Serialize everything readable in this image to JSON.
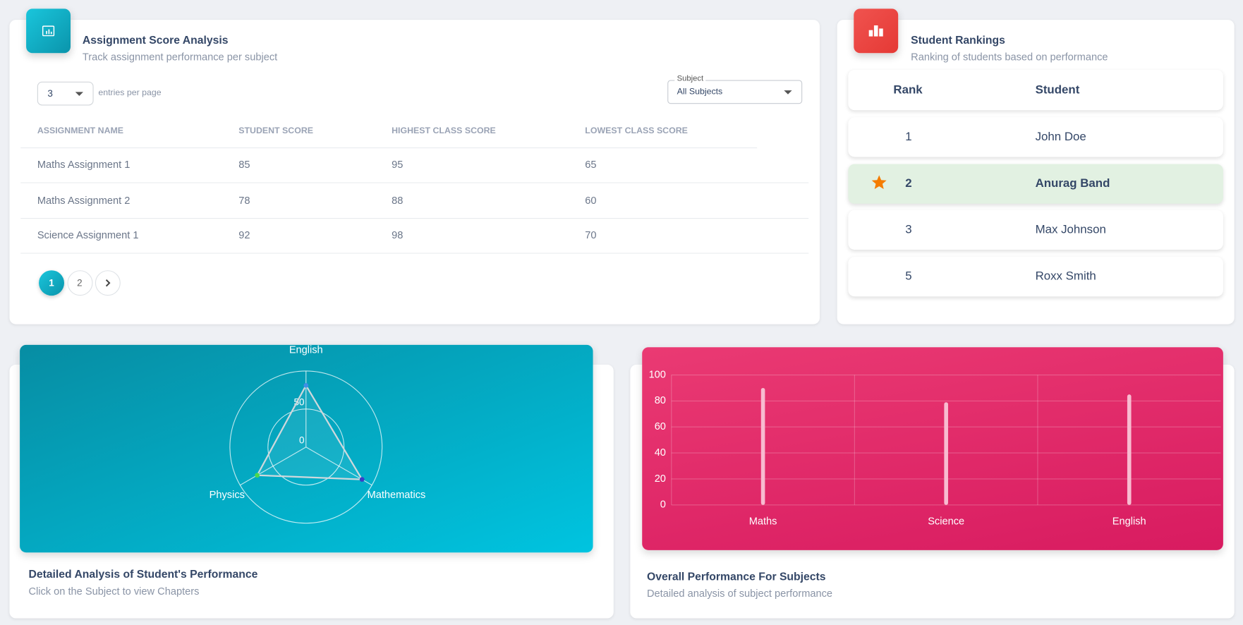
{
  "assignments": {
    "title": "Assignment Score Analysis",
    "subtitle": "Track assignment performance per subject",
    "entries_per_page": 3,
    "entries_label": "entries per page",
    "filter_label": "Subject",
    "filter_value": "All Subjects",
    "columns": [
      "ASSIGNMENT NAME",
      "STUDENT SCORE",
      "HIGHEST CLASS SCORE",
      "LOWEST CLASS SCORE"
    ],
    "rows": [
      [
        "Maths Assignment 1",
        85,
        95,
        65
      ],
      [
        "Maths Assignment 2",
        78,
        88,
        60
      ],
      [
        "Science Assignment 1",
        92,
        98,
        70
      ]
    ],
    "pages": [
      1,
      2
    ]
  },
  "rankings": {
    "title": "Student Rankings",
    "subtitle": "Ranking of students based on performance",
    "columns": [
      "Rank",
      "Student"
    ],
    "rows": [
      {
        "rank": 1,
        "student": "John Doe"
      },
      {
        "rank": 2,
        "student": "Anurag Band",
        "highlighted": true
      },
      {
        "rank": 3,
        "student": "Max Johnson"
      },
      {
        "rank": 5,
        "student": "Roxx Smith"
      }
    ]
  },
  "performance": {
    "title": "Detailed Analysis of Student's Performance",
    "subtitle": "Click on the Subject to view Chapters",
    "chart": {
      "type": "radar",
      "categories": [
        "English",
        "Mathematics",
        "Physics"
      ],
      "values": [
        81,
        85,
        74
      ],
      "point_colors": [
        "#3f8fe6",
        "#3b3fc8",
        "#4cd84c"
      ],
      "line_color": "#cfd8dc",
      "rlim": [
        0,
        100
      ],
      "rticks": [
        0,
        50
      ]
    }
  },
  "subjects": {
    "title": "Overall Performance For Subjects",
    "subtitle": "Detailed analysis of subject performance",
    "chart": {
      "type": "bar",
      "categories": [
        "Maths",
        "Science",
        "English"
      ],
      "values": [
        90,
        79,
        85
      ],
      "color": "#f8bbd0",
      "ylim": [
        0,
        100
      ],
      "yticks": [
        0,
        20,
        40,
        60,
        80,
        100
      ],
      "grid": true
    }
  }
}
